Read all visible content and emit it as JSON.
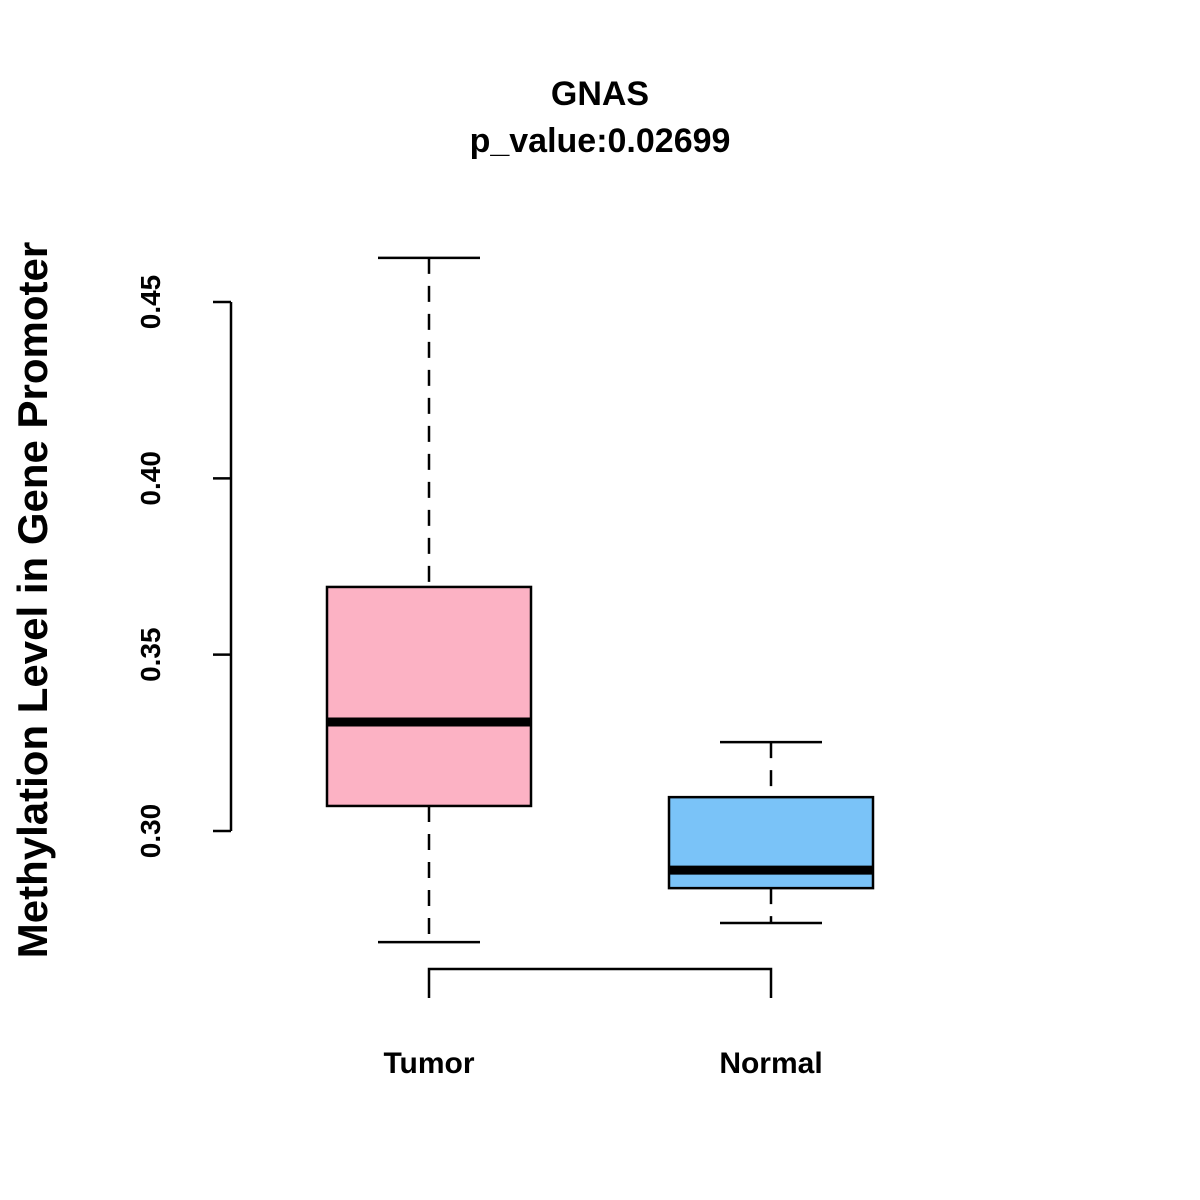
{
  "chart_data": {
    "type": "boxplot",
    "title": "GNAS",
    "subtitle": "p_value:0.02699",
    "xlabel": "",
    "ylabel": "Methylation Level in Gene Promoter",
    "yticks": [
      "0.30",
      "0.35",
      "0.40",
      "0.45"
    ],
    "ytick_values": [
      0.3,
      0.35,
      0.4,
      0.45
    ],
    "categories": [
      "Tumor",
      "Normal"
    ],
    "boxes": [
      {
        "name": "Tumor",
        "whisker_low": 0.2685,
        "q1": 0.3071,
        "median": 0.3309,
        "q3": 0.3692,
        "whisker_high": 0.4625,
        "color": "#FCB2C4"
      },
      {
        "name": "Normal",
        "whisker_low": 0.2739,
        "q1": 0.2838,
        "median": 0.2889,
        "q3": 0.3096,
        "whisker_high": 0.3252,
        "color": "#7AC3F8"
      }
    ],
    "grid": false,
    "legend": "none"
  }
}
